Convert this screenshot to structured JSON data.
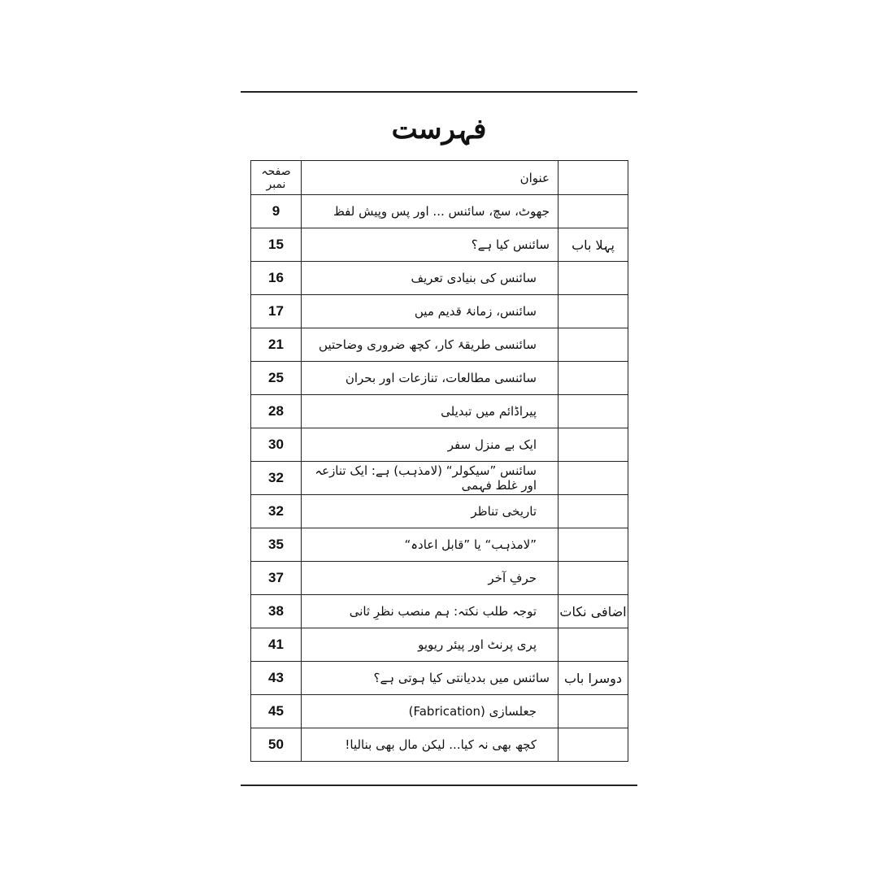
{
  "title": "فہرست",
  "header": {
    "section": "",
    "heading": "عنوان",
    "page": "صفحہ نمبر"
  },
  "rows": [
    {
      "section": "",
      "title": "جھوٹ، سچ، سائنس ... اور پس وپیش لفظ",
      "page": "9",
      "sub": false
    },
    {
      "section": "پہلا باب",
      "title": "سائنس کیا ہے؟",
      "page": "15",
      "sub": false
    },
    {
      "section": "",
      "title": "سائنس کی بنیادی تعریف",
      "page": "16",
      "sub": true
    },
    {
      "section": "",
      "title": "سائنس، زمانۂ قدیم میں",
      "page": "17",
      "sub": true
    },
    {
      "section": "",
      "title": "سائنسی طریقۂ کار، کچھ ضروری وضاحتیں",
      "page": "21",
      "sub": true
    },
    {
      "section": "",
      "title": "سائنسی مطالعات، تنازعات اور بحران",
      "page": "25",
      "sub": true
    },
    {
      "section": "",
      "title": "پیراڈائم میں تبدیلی",
      "page": "28",
      "sub": true
    },
    {
      "section": "",
      "title": "ایک بے منزل سفر",
      "page": "30",
      "sub": true
    },
    {
      "section": "",
      "title": "سائنس ”سیکولر“ (لامذہب) ہے: ایک تنازعہ اور غلط فہمی",
      "page": "32",
      "sub": true
    },
    {
      "section": "",
      "title": "تاریخی تناظر",
      "page": "32",
      "sub": true
    },
    {
      "section": "",
      "title": "”لامذہب“ یا ”قابل اعادہ“",
      "page": "35",
      "sub": true
    },
    {
      "section": "",
      "title": "حرفِ آخر",
      "page": "37",
      "sub": true
    },
    {
      "section": "اضافی نکات",
      "title": "توجہ طلب نکتہ: ہم منصب نظرِ ثانی",
      "page": "38",
      "sub": true
    },
    {
      "section": "",
      "title": "پری پرنٹ اور پیئر ریویو",
      "page": "41",
      "sub": true
    },
    {
      "section": "دوسرا باب",
      "title": "سائنس میں بددیانتی کیا ہوتی ہے؟",
      "page": "43",
      "sub": false
    },
    {
      "section": "",
      "title": "جعلسازی (Fabrication)",
      "page": "45",
      "sub": true
    },
    {
      "section": "",
      "title": "کچھ بھی نہ کیا... لیکن مال بھی بنالیا!",
      "page": "50",
      "sub": true
    }
  ]
}
